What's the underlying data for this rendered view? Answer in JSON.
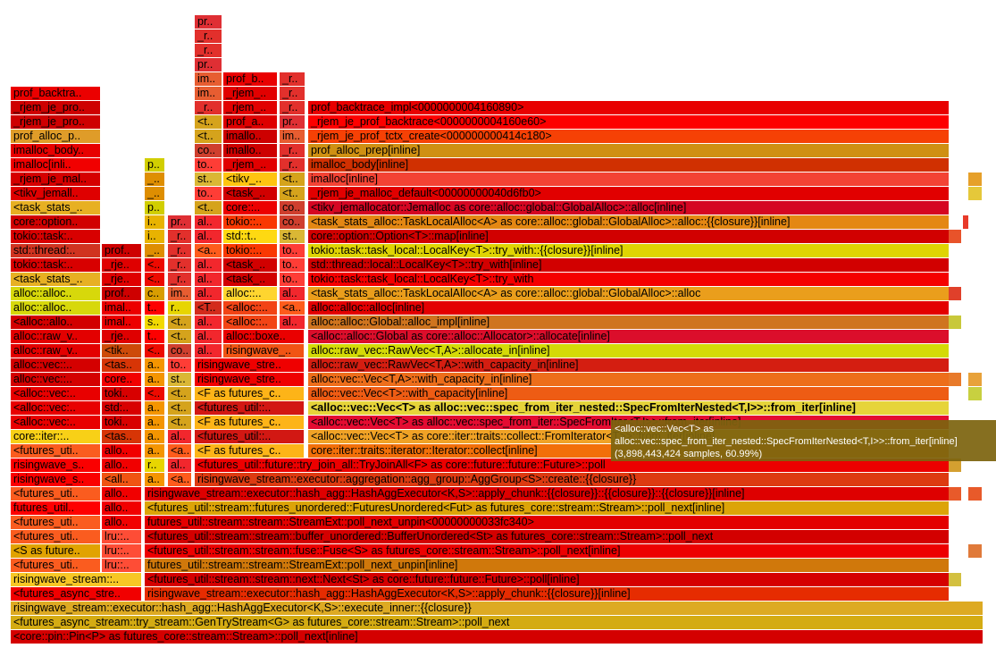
{
  "rows": [
    [
      "<core::pin::Pin<P> as futures_core::stream::Stream>::poll_next[inline]"
    ],
    [
      "<futures_async_stream::try_stream::GenTryStream<G> as futures_core::stream::Stream>::poll_next"
    ],
    [
      "risingwave_stream::executor::hash_agg::HashAggExecutor<K,S>::execute_inner::{{closure}}"
    ],
    [
      "<futures_async_stre..",
      "risingwave_stream::executor::hash_agg::HashAggExecutor<K,S>::apply_chunk::{{closure}}[inline]"
    ],
    [
      "risingwave_stream::..",
      "<futures_util::stream::stream::next::Next<St> as core::future::future::Future>::poll[inline]"
    ],
    [
      "<futures_uti..",
      "lru::..",
      "futures_util::stream::stream::StreamExt::poll_next_unpin[inline]"
    ],
    [
      "<S as future..",
      "lru::..",
      "<futures_util::stream::stream::fuse::Fuse<S> as futures_core::stream::Stream>::poll_next[inline]"
    ],
    [
      "<futures_uti..",
      "lru::..",
      "<futures_util::stream::stream::buffer_unordered::BufferUnordered<St> as futures_core::stream::Stream>::poll_next"
    ],
    [
      "<futures_uti..",
      "allo..",
      "futures_util::stream::stream::StreamExt::poll_next_unpin<00000000033fc340>"
    ],
    [
      "futures_util..",
      "allo..",
      "<futures_util::stream::futures_unordered::FuturesUnordered<Fut> as futures_core::stream::Stream>::poll_next[inline]"
    ],
    [
      "<futures_uti..",
      "allo..",
      "risingwave_stream::executor::hash_agg::HashAggExecutor<K,S>::apply_chunk::{{closure}}::{{closure}}::{{closure}}[inline]"
    ],
    [
      "risingwave_s..",
      "<all..",
      "a..",
      "<a..",
      "risingwave_stream::executor::aggregation::agg_group::AggGroup<S>::create::{{closure}}"
    ],
    [
      "risingwave_s..",
      "allo..",
      "r..",
      "al..",
      "<futures_util::future::try_join_all::TryJoinAll<F> as core::future::future::Future>::poll"
    ],
    [
      "<futures_uti..",
      "allo..",
      "a..",
      "<a..",
      "<F as futures_c..",
      "core::iter::traits::iterator::Iterator::collect[inline]"
    ],
    [
      "core::iter::..",
      "<tas..",
      "a..",
      "al..",
      "<futures_util::..",
      "<alloc::vec::Vec<T> as core::iter::traits::collect::FromIterator<T>>::from_iter[inline]"
    ],
    [
      "<alloc::vec:..",
      "toki..",
      "a..",
      "<t..",
      "<F as futures_c..",
      "<alloc::vec::Vec<T> as alloc::vec::spec_from_iter::SpecFromIter<T,I>>::from_iter[inline]"
    ],
    [
      "<alloc::vec:..",
      "std:..",
      "a..",
      "<t..",
      "<futures_util::..",
      "<alloc::vec::Vec<T> as alloc::vec::spec_from_iter_nested::SpecFromIterNested<T,I>>::from_iter[inline]"
    ],
    [
      "<alloc::vec:..",
      "toki..",
      "<..",
      "<t..",
      "<F as futures_c..",
      "alloc::vec::Vec<T>::with_capacity[inline]"
    ],
    [
      "alloc::vec::..",
      "core..",
      "a..",
      "st..",
      "risingwave_stre..",
      "alloc::vec::Vec<T,A>::with_capacity_in[inline]"
    ],
    [
      "alloc::vec::..",
      "<tas..",
      "a..",
      "to..",
      "risingwave_stre..",
      "alloc::raw_vec::RawVec<T,A>::with_capacity_in[inline]"
    ],
    [
      "alloc::raw_v..",
      "<tik..",
      "<..",
      "co..",
      "al..",
      "risingwave_..",
      "alloc::raw_vec::RawVec<T,A>::allocate_in[inline]"
    ],
    [
      "alloc::raw_v..",
      "_rje..",
      "t..",
      "<t..",
      "al..",
      "alloc::boxe..",
      "<alloc::alloc::Global as core::alloc::Allocator>::allocate[inline]"
    ],
    [
      "<alloc::allo..",
      "imal..",
      "s..",
      "<t..",
      "al..",
      "<alloc::..",
      "al..",
      "alloc::alloc::Global::alloc_impl[inline]"
    ],
    [
      "alloc::alloc..",
      "imal..",
      "t..",
      "r..",
      "<T..",
      "<alloc::..",
      "<a..",
      "alloc::alloc::alloc[inline]"
    ],
    [
      "alloc::alloc..",
      "prof..",
      "c..",
      "im..",
      "al..",
      "alloc::..",
      "al..",
      "<task_stats_alloc::TaskLocalAlloc<A> as core::alloc::global::GlobalAlloc>::alloc"
    ],
    [
      "<task_stats_..",
      "_rje..",
      "<..",
      "_r..",
      "al..",
      "<task_..",
      "to..",
      "tokio::task::task_local::LocalKey<T>::try_with"
    ],
    [
      "tokio::task:..",
      "_rje..",
      "<..",
      "_r..",
      "al..",
      "<task_..",
      "to..",
      "std::thread::local::LocalKey<T>::try_with[inline]"
    ],
    [
      "std::thread:..",
      "prof..",
      "_..",
      "_r..",
      "<a..",
      "tokio::..",
      "to..",
      "tokio::task::task_local::LocalKey<T>::try_with::{{closure}}[inline]"
    ],
    [
      "tokio::task:..",
      "i..",
      "_r..",
      "al..",
      "std::t..",
      "st..",
      "core::option::Option<T>::map[inline]"
    ],
    [
      "core::option..",
      "i..",
      "pr..",
      "al..",
      "tokio::..",
      "co..",
      "<task_stats_alloc::TaskLocalAlloc<A> as core::alloc::global::GlobalAlloc>::alloc::{{closure}}[inline]"
    ],
    [
      "<task_stats_..",
      "p..",
      "<t..",
      "core::..",
      "co..",
      "<tikv_jemallocator::Jemalloc as core::alloc::global::GlobalAlloc>::alloc[inline]"
    ],
    [
      "<tikv_jemall..",
      "_..",
      "to..",
      "<task_..",
      "<t..",
      "_rjem_je_malloc_default<00000000040d6fb0>"
    ],
    [
      "_rjem_je_mal..",
      "_..",
      "st..",
      "<tikv_..",
      "<t..",
      "imalloc[inline]"
    ],
    [
      "imalloc[inli..",
      "p..",
      "to..",
      "_rjem_..",
      "_r..",
      "imalloc_body[inline]"
    ],
    [
      "imalloc_body..",
      "co..",
      "imallo..",
      "_r..",
      "prof_alloc_prep[inline]"
    ],
    [
      "prof_alloc_p..",
      "<t..",
      "imallo..",
      "im..",
      "_rjem_je_prof_tctx_create<000000000414c180>"
    ],
    [
      "_rjem_je_pro..",
      "<t..",
      "prof_a..",
      "pr..",
      "_rjem_je_prof_backtrace<0000000004160e60>"
    ],
    [
      "_rjem_je_pro..",
      "_r..",
      "_rjem_..",
      "_r..",
      "prof_backtrace_impl<0000000004160890>"
    ],
    [
      "prof_backtra..",
      "im..",
      "_rjem_..",
      "_r.."
    ],
    [
      "im..",
      "prof_b..",
      "_r.."
    ],
    [
      "pr.."
    ],
    [
      "_r.."
    ],
    [
      "_r.."
    ],
    [
      "pr.."
    ]
  ],
  "tooltip": {
    "title": "<alloc::vec::Vec<T> as alloc::vec::spec_from_iter_nested::SpecFromIterNested<T,I>>::from_iter[inline]",
    "samples": "(3,898,443,424 samples, 60.99%)"
  }
}
